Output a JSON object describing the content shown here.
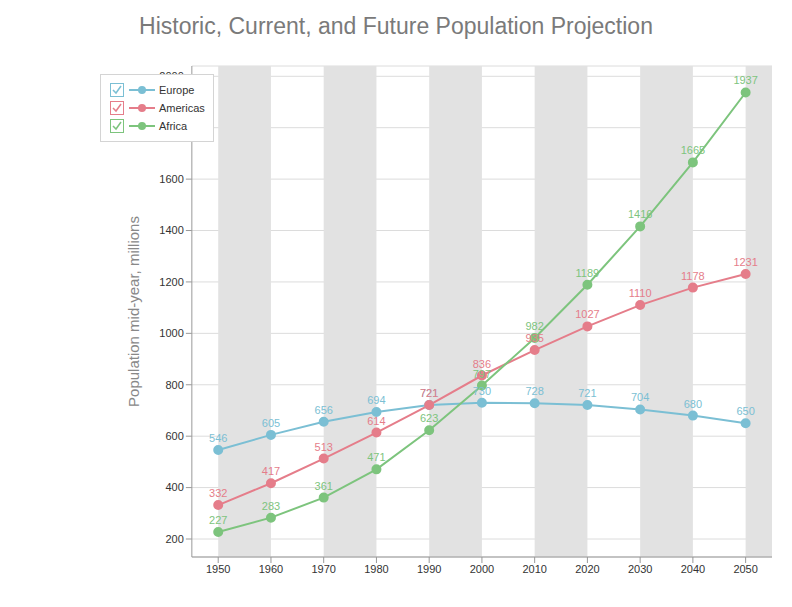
{
  "chart_data": {
    "type": "line",
    "title": "Historic, Current, and Future Population Projection",
    "y_label": "Population mid-year, millions",
    "x": [
      1950,
      1960,
      1970,
      1980,
      1990,
      2000,
      2010,
      2020,
      2030,
      2040,
      2050
    ],
    "xlim": [
      1945,
      2055
    ],
    "xticks": [
      1950,
      1960,
      1970,
      1980,
      1990,
      2000,
      2010,
      2020,
      2030,
      2040,
      2050
    ],
    "ylim": [
      130,
      2040
    ],
    "yticks": [
      200,
      400,
      600,
      800,
      1000,
      1200,
      1400,
      1600,
      1800,
      2000
    ],
    "grid": true,
    "legend": "top-left",
    "data_labels": true,
    "marker": "circle",
    "series": [
      {
        "name": "Europe",
        "color": "#7bbfd4",
        "values": [
          546,
          605,
          656,
          694,
          721,
          730,
          728,
          721,
          704,
          680,
          650
        ]
      },
      {
        "name": "Americas",
        "color": "#e57d8a",
        "values": [
          332,
          417,
          513,
          614,
          721,
          836,
          935,
          1027,
          1110,
          1178,
          1231
        ]
      },
      {
        "name": "Africa",
        "color": "#7dc47d",
        "values": [
          227,
          283,
          361,
          471,
          623,
          797,
          982,
          1189,
          1416,
          1665,
          1937
        ]
      }
    ]
  }
}
